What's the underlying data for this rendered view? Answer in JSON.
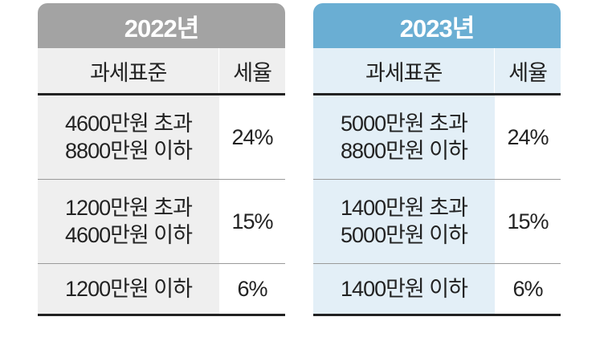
{
  "tables": [
    {
      "year": "2022년",
      "headers": {
        "standard": "과세표준",
        "rate": "세율"
      },
      "rows": [
        {
          "line1": "4600만원 초과",
          "line2": "8800만원 이하",
          "rate": "24%"
        },
        {
          "line1": "1200만원 초과",
          "line2": "4600만원 이하",
          "rate": "15%"
        },
        {
          "line1": "1200만원 이하",
          "rate": "6%"
        }
      ],
      "header_color": "#a3a3a3",
      "cell_color": "#efefef"
    },
    {
      "year": "2023년",
      "headers": {
        "standard": "과세표준",
        "rate": "세율"
      },
      "rows": [
        {
          "line1": "5000만원 초과",
          "line2": "8800만원 이하",
          "rate": "24%"
        },
        {
          "line1": "1400만원 초과",
          "line2": "5000만원 이하",
          "rate": "15%"
        },
        {
          "line1": "1400만원 이하",
          "rate": "6%"
        }
      ],
      "header_color": "#6aaed3",
      "cell_color": "#e3eff7"
    }
  ]
}
